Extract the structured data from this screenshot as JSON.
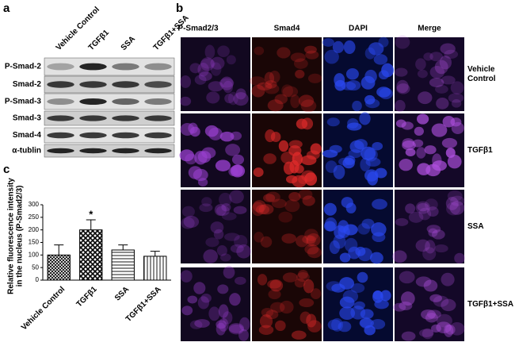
{
  "panels": {
    "a": "a",
    "b": "b",
    "c": "c"
  },
  "blot": {
    "lanes": [
      "Vehicle Control",
      "TGFβ1",
      "SSA",
      "TGFβ1+SSA"
    ],
    "rows": [
      "P-Smad-2",
      "Smad-2",
      "P-Smad-3",
      "Smad-3",
      "Smad-4",
      "α-tublin"
    ]
  },
  "micrographs": {
    "columns": [
      "P-Smad2/3",
      "Smad4",
      "DAPI",
      "Merge"
    ],
    "rows": [
      [
        "Vehicle",
        "Control"
      ],
      [
        "TGFβ1"
      ],
      [
        "SSA"
      ],
      [
        "TGFβ1+SSA"
      ]
    ]
  },
  "chart_data": {
    "type": "bar",
    "ylabel": [
      "Relative fluorescence intensity",
      "in the nucleus (P-Smad2/3)"
    ],
    "categories": [
      "Vehicle Control",
      "TGFβ1",
      "SSA",
      "TGFβ1+SSA"
    ],
    "values": [
      100,
      200,
      120,
      95
    ],
    "errors": [
      40,
      40,
      20,
      20
    ],
    "annotations": [
      null,
      "*",
      null,
      null
    ],
    "patterns": [
      "crosshatch",
      "checker",
      "horizontal",
      "vertical"
    ],
    "color": "#000000",
    "ylim": [
      0,
      300
    ],
    "yticks": [
      0,
      50,
      100,
      150,
      200,
      250,
      300
    ]
  }
}
